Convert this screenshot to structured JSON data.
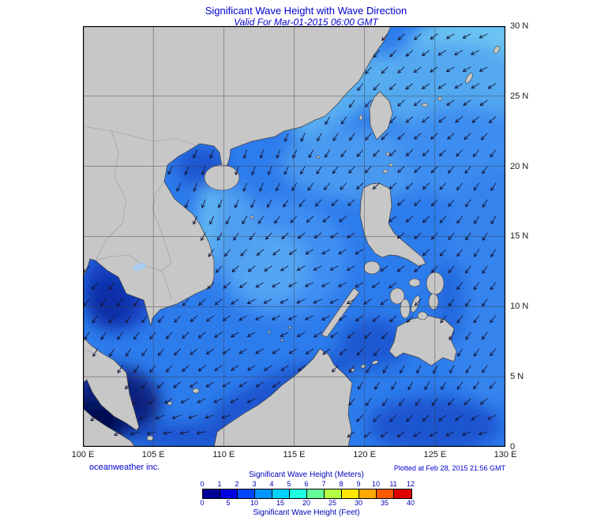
{
  "header": {
    "title": "Significant Wave Height with Wave Direction",
    "subtitle": "Valid For Mar-01-2015 06:00 GMT"
  },
  "map": {
    "lon_labels": [
      "100 E",
      "105 E",
      "110 E",
      "115 E",
      "120 E",
      "125 E",
      "130 E"
    ],
    "lat_labels": [
      "30 N",
      "25 N",
      "20 N",
      "15 N",
      "10 N",
      "5 N",
      "0"
    ]
  },
  "branding": {
    "credit": "oceanweather inc.",
    "plotted": "Plotted at Feb 28, 2015 21:56 GMT"
  },
  "legend": {
    "meters_title": "Significant Wave Height (Meters)",
    "feet_title": "Significant Wave Height (Feet)",
    "meters_ticks": [
      "0",
      "1",
      "2",
      "3",
      "4",
      "5",
      "6",
      "7",
      "8",
      "9",
      "10",
      "11",
      "12"
    ],
    "feet_ticks": [
      "0",
      "5",
      "10",
      "15",
      "20",
      "25",
      "30",
      "35",
      "40"
    ],
    "segment_colors": [
      "#000096",
      "#0000e1",
      "#0046ff",
      "#0096ff",
      "#00d2ff",
      "#1effe1",
      "#64ff96",
      "#b4ff46",
      "#ffe600",
      "#ffaa00",
      "#ff5a00",
      "#e10000"
    ]
  },
  "palette": {
    "land": "#c7c7c7",
    "coastline": "#3c3c3c",
    "border_line": "#9a9a9a",
    "ocean_base": "#2d7cec",
    "arrow": "#16163a",
    "grid": "#3a3a3a",
    "title_blue": "#0000cd",
    "legend_blue": "#0000b8"
  }
}
